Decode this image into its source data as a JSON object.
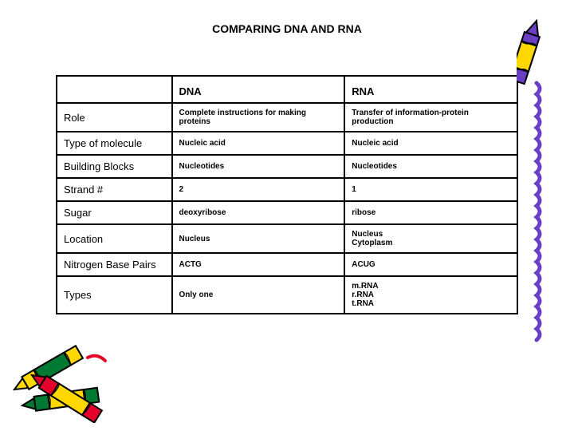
{
  "title": "COMPARING DNA AND RNA",
  "headers": {
    "attr": "",
    "dna": "DNA",
    "rna": "RNA"
  },
  "rows": [
    {
      "attr": "Role",
      "dna": "Complete instructions for making proteins",
      "rna": "Transfer of information-protein production"
    },
    {
      "attr": "Type of molecule",
      "dna": "Nucleic acid",
      "rna": "Nucleic acid"
    },
    {
      "attr": "Building Blocks",
      "dna": "Nucleotides",
      "rna": "Nucleotides"
    },
    {
      "attr": "Strand #",
      "dna": "2",
      "rna": "1"
    },
    {
      "attr": "Sugar",
      "dna": "deoxyribose",
      "rna": "ribose"
    },
    {
      "attr": "Location",
      "dna": "Nucleus",
      "rna": "Nucleus\nCytoplasm"
    },
    {
      "attr": "Nitrogen Base Pairs",
      "dna": "ACTG",
      "rna": "ACUG"
    },
    {
      "attr": "Types",
      "dna": "Only one",
      "rna": "m.RNA\nr.RNA\nt.RNA"
    }
  ],
  "decor": {
    "crayon_right": {
      "body": "#6a3fc4",
      "wrap": "#ffd800",
      "squiggle": "#6a3fc4"
    },
    "crayons_bl": [
      {
        "body": "#e4002b",
        "wrap": "#ffd800"
      },
      {
        "body": "#ffd800",
        "wrap": "#007a33"
      },
      {
        "body": "#007a33",
        "wrap": "#ffd800"
      }
    ]
  }
}
